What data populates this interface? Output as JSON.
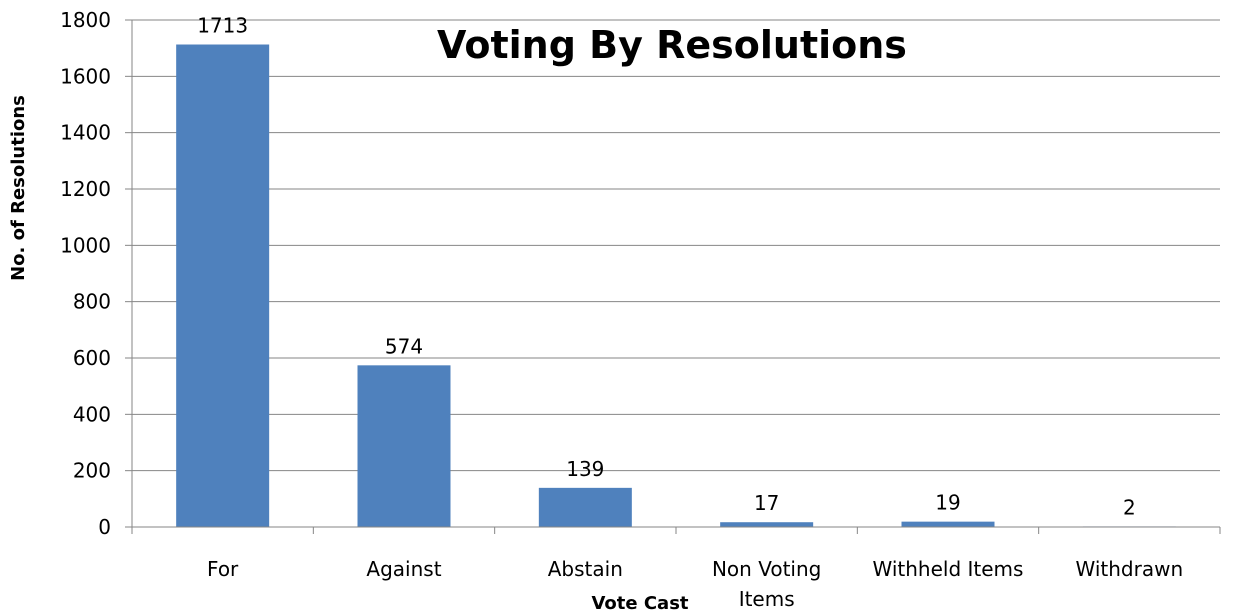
{
  "chart_data": {
    "type": "bar",
    "title": "Voting By Resolutions",
    "xlabel": "Vote Cast",
    "ylabel": "No. of Resolutions",
    "categories": [
      "For",
      "Against",
      "Abstain",
      "Non Voting Items",
      "Withheld Items",
      "Withdrawn"
    ],
    "values": [
      1713,
      574,
      139,
      17,
      19,
      2
    ],
    "ylim": [
      0,
      1800
    ],
    "yticks": [
      0,
      200,
      400,
      600,
      800,
      1000,
      1200,
      1400,
      1600,
      1800
    ],
    "grid": true,
    "legend": "none",
    "bar_color": "#4f81bd",
    "grid_color": "#868686"
  }
}
